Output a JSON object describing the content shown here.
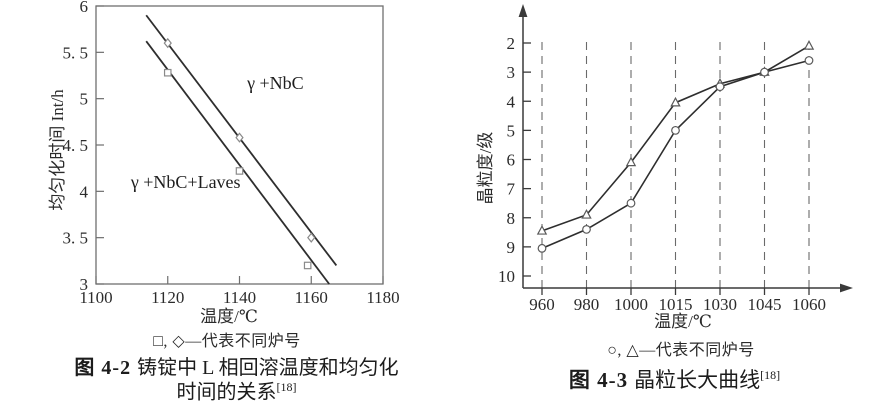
{
  "page": {
    "background": "#ffffff",
    "ink_color": "#2e2e2e",
    "frame_color": "#6f6f6f",
    "marker_color": "#8a8a8a"
  },
  "figures": [
    {
      "legend_note": "□, ◇—代表不同炉号",
      "caption_prefix": "图 4-2",
      "caption_line1": "铸锭中 L 相回溶温度和均匀化",
      "caption_line2": "时间的关系",
      "caption_ref": "[18]"
    },
    {
      "legend_note": "○, △—代表不同炉号",
      "caption_prefix": "图 4-3",
      "caption_line1": "晶粒长大曲线",
      "caption_ref": "[18]"
    }
  ],
  "chart_data": [
    {
      "type": "scatter",
      "title": "",
      "xlabel": "温度/℃",
      "ylabel": "均匀化时间 Int/h",
      "xlim": [
        1100,
        1180
      ],
      "ylim": [
        3,
        6
      ],
      "xticks": [
        1100,
        1120,
        1140,
        1160,
        1180
      ],
      "yticks": [
        6,
        5.5,
        5,
        4.5,
        4,
        3.5,
        3
      ],
      "ytick_labels": [
        "6",
        "5. 5",
        "5",
        "4. 5",
        "4",
        "3. 5",
        "3"
      ],
      "grid": false,
      "frame": "box",
      "legend_position": "below",
      "series": [
        {
          "name": "◇",
          "marker": "diamond",
          "points": [
            [
              1120,
              5.6
            ],
            [
              1140,
              4.58
            ],
            [
              1160,
              3.5
            ]
          ],
          "trend_line": [
            [
              1114,
              5.9
            ],
            [
              1167,
              3.2
            ]
          ]
        },
        {
          "name": "□",
          "marker": "square",
          "points": [
            [
              1120,
              5.28
            ],
            [
              1140,
              4.22
            ],
            [
              1159,
              3.2
            ]
          ],
          "trend_line": [
            [
              1114,
              5.62
            ],
            [
              1165,
              3.0
            ]
          ]
        }
      ],
      "annotations": [
        {
          "text": "γ +NbC",
          "x": 1150,
          "y": 5.17
        },
        {
          "text": "γ +NbC+Laves",
          "x": 1125,
          "y": 4.1
        }
      ]
    },
    {
      "type": "line",
      "title": "",
      "xlabel": "温度/℃",
      "ylabel": "晶粒度/级",
      "categories": [
        "960",
        "980",
        "1000",
        "1015",
        "1030",
        "1045",
        "1060"
      ],
      "yticks": [
        2,
        3,
        4,
        5,
        6,
        7,
        8,
        9,
        10
      ],
      "ylim": [
        2,
        10
      ],
      "y_inverted": true,
      "grid": "dashed-vertical",
      "frame": "axes-with-arrows",
      "legend_position": "below",
      "series": [
        {
          "name": "△",
          "marker": "triangle",
          "values": [
            8.45,
            7.9,
            6.1,
            4.05,
            3.4,
            3.0,
            2.1
          ]
        },
        {
          "name": "○",
          "marker": "circle",
          "values": [
            9.05,
            8.4,
            7.5,
            5.0,
            3.5,
            3.0,
            2.6
          ]
        }
      ]
    }
  ]
}
